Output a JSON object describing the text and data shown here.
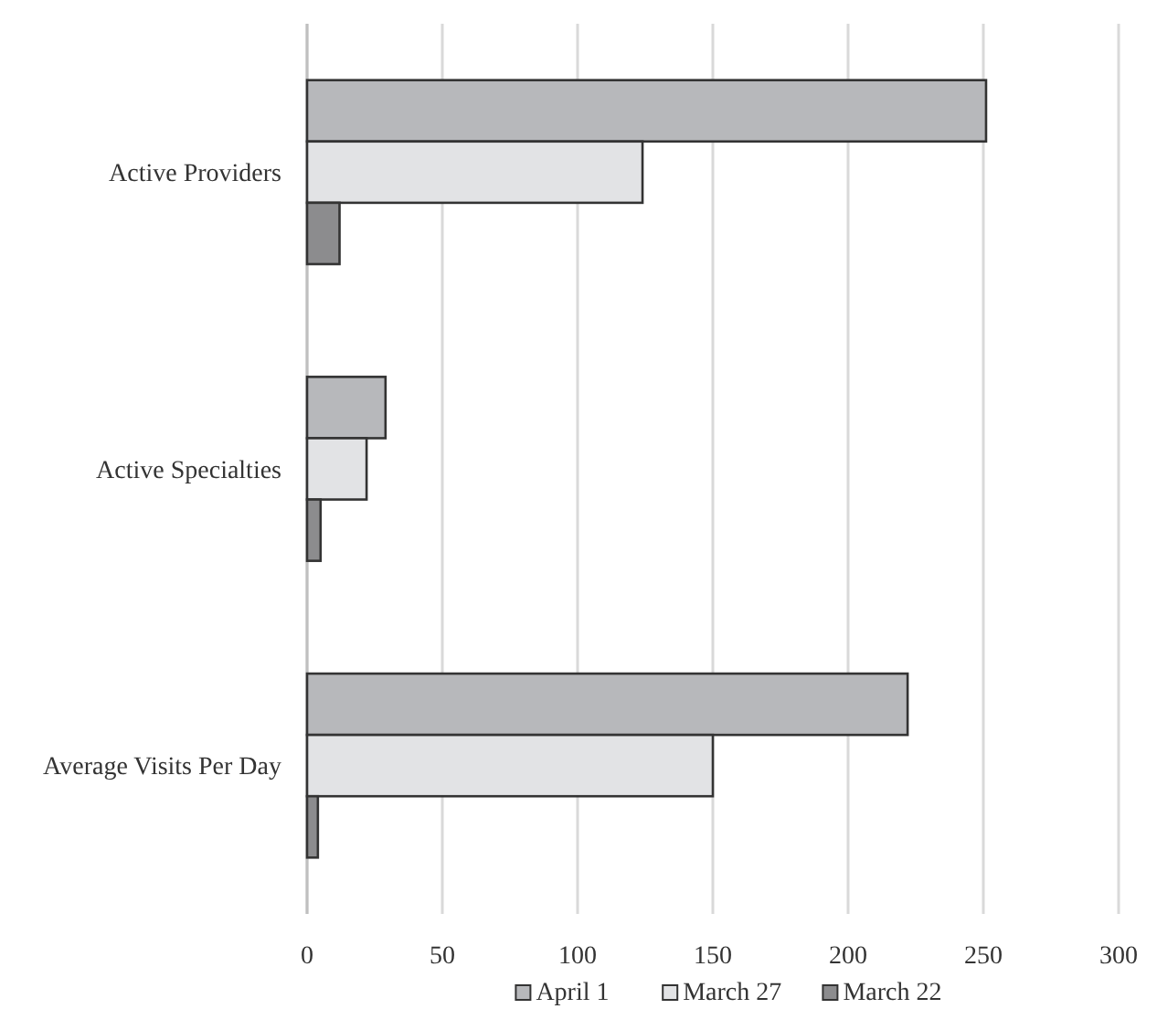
{
  "chart_data": {
    "type": "bar",
    "orientation": "horizontal",
    "categories": [
      "Active Providers",
      "Active Specialties",
      "Average Visits Per Day"
    ],
    "series": [
      {
        "name": "April 1",
        "color": "#b7b8bb",
        "values": [
          251,
          29,
          222
        ]
      },
      {
        "name": "March 27",
        "color": "#e2e3e5",
        "values": [
          124,
          22,
          150
        ]
      },
      {
        "name": "March 22",
        "color": "#8c8c8e",
        "values": [
          12,
          5,
          4
        ]
      }
    ],
    "xlim": [
      0,
      300
    ],
    "xticks": [
      0,
      50,
      100,
      150,
      200,
      250,
      300
    ],
    "grid": "x",
    "legend": "bottom"
  }
}
